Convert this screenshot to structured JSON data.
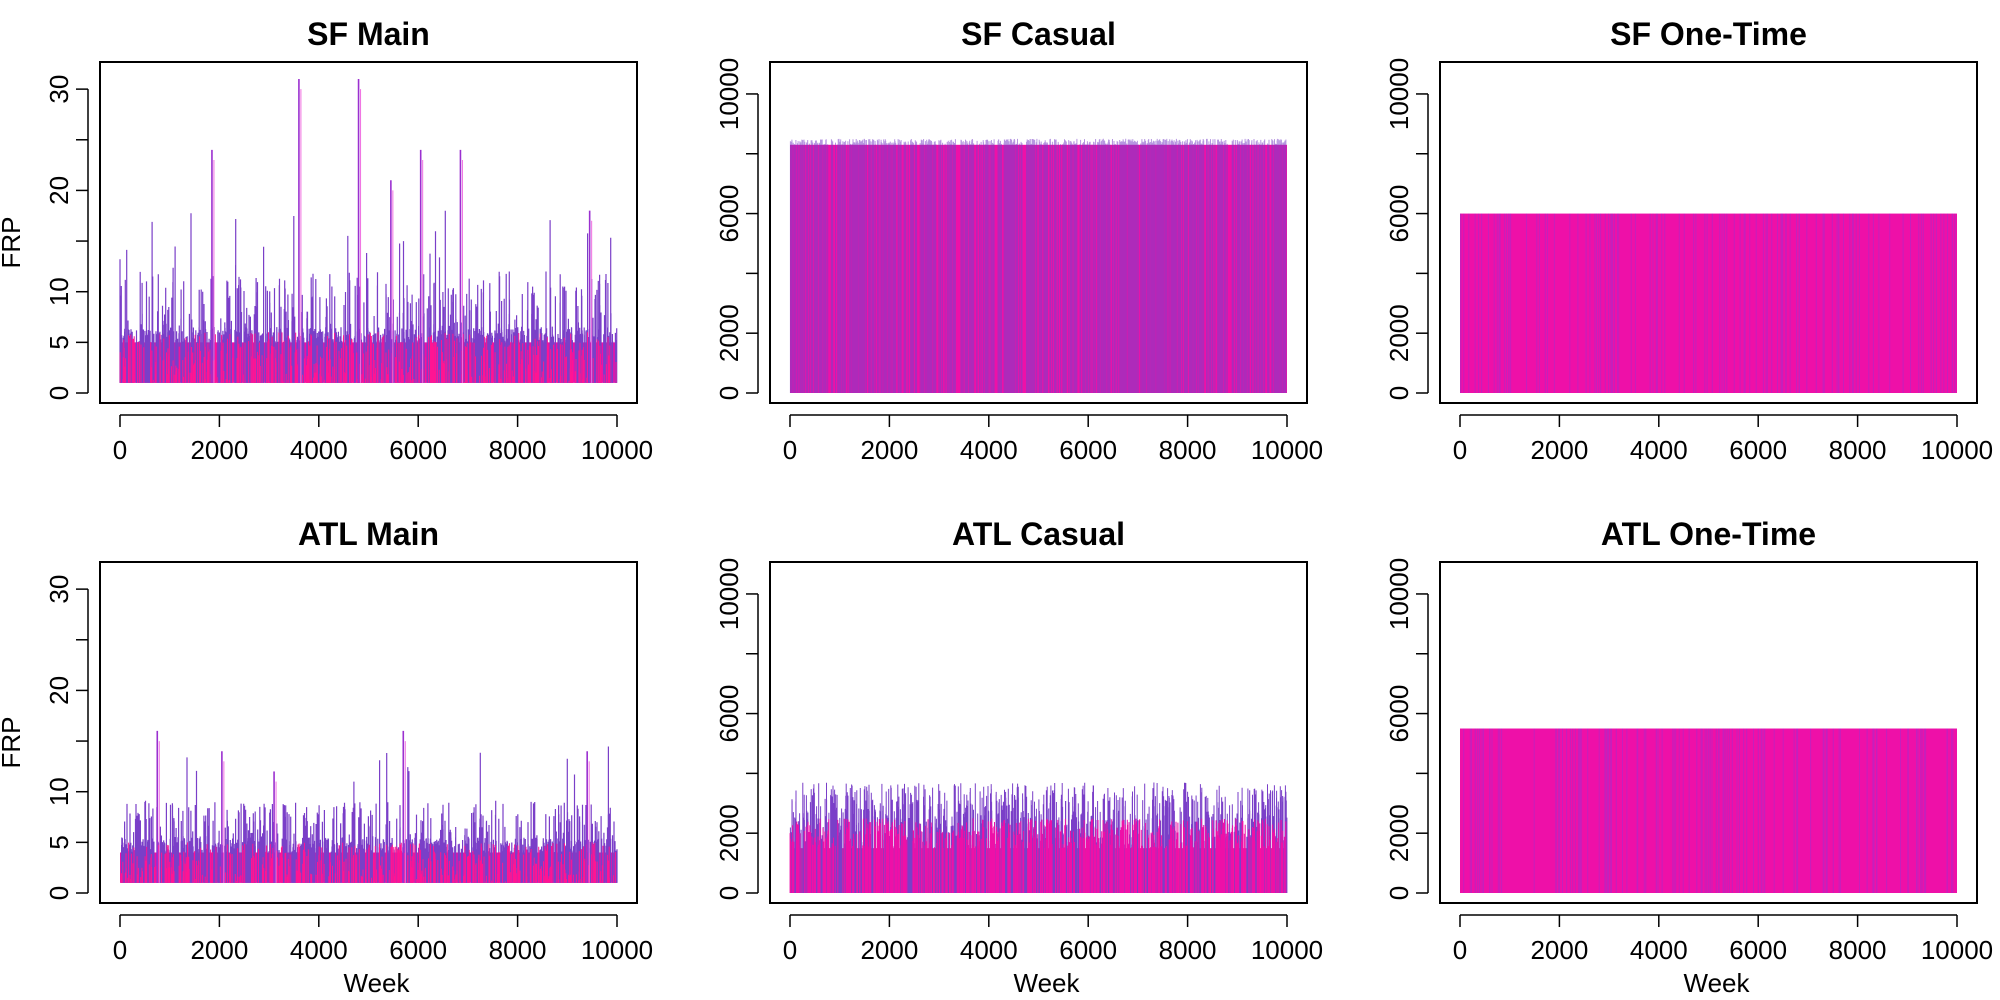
{
  "figure": {
    "colors": {
      "spike_dark": "#7a3fc8",
      "spike_mid": "#9b30d0",
      "fill_magenta": "#ee10a8",
      "fill_pink": "#ff1493",
      "light_pink": "#f070e0"
    }
  },
  "chart_data": [
    {
      "type": "area",
      "title": "SF Main",
      "xlabel": "",
      "ylabel": "FRP",
      "xlim": [
        0,
        10000
      ],
      "ylim": [
        0,
        31
      ],
      "x_ticks": [
        "0",
        "2000",
        "4000",
        "6000",
        "8000",
        "10000"
      ],
      "y_ticks": [
        "0",
        "5",
        "10",
        "20",
        "30"
      ],
      "series_summary": {
        "baseline": 1,
        "typical_range": [
          1,
          5
        ],
        "frequent_spikes_to": 10,
        "occasional_peaks": [
          [
            1850,
            24
          ],
          [
            3600,
            31
          ],
          [
            4800,
            31
          ],
          [
            5450,
            21
          ],
          [
            6050,
            24
          ],
          [
            6850,
            24
          ],
          [
            9450,
            18
          ]
        ]
      }
    },
    {
      "type": "area",
      "title": "SF Casual",
      "xlabel": "",
      "ylabel": "",
      "xlim": [
        0,
        10000
      ],
      "ylim": [
        0,
        10500
      ],
      "x_ticks": [
        "0",
        "2000",
        "4000",
        "6000",
        "8000",
        "10000"
      ],
      "y_ticks": [
        "0",
        "2000",
        "6000",
        "10000"
      ],
      "series_summary": {
        "baseline": 0,
        "band_top": 8300,
        "max": 8500
      }
    },
    {
      "type": "area",
      "title": "SF One-Time",
      "xlabel": "",
      "ylabel": "",
      "xlim": [
        0,
        10000
      ],
      "ylim": [
        0,
        10500
      ],
      "x_ticks": [
        "0",
        "2000",
        "4000",
        "6000",
        "8000",
        "10000"
      ],
      "y_ticks": [
        "0",
        "2000",
        "6000",
        "10000"
      ],
      "series_summary": {
        "baseline": 0,
        "band_top": 6000,
        "max": 6000
      }
    },
    {
      "type": "area",
      "title": "ATL Main",
      "xlabel": "Week",
      "ylabel": "FRP",
      "xlim": [
        0,
        10000
      ],
      "ylim": [
        0,
        31
      ],
      "x_ticks": [
        "0",
        "2000",
        "4000",
        "6000",
        "8000",
        "10000"
      ],
      "y_ticks": [
        "0",
        "5",
        "10",
        "20",
        "30"
      ],
      "series_summary": {
        "baseline": 1,
        "typical_range": [
          1,
          4
        ],
        "frequent_spikes_to": 7,
        "occasional_peaks": [
          [
            750,
            16
          ],
          [
            2050,
            14
          ],
          [
            3100,
            12
          ],
          [
            5700,
            16
          ],
          [
            9400,
            14
          ]
        ]
      }
    },
    {
      "type": "area",
      "title": "ATL Casual",
      "xlabel": "Week",
      "ylabel": "",
      "xlim": [
        0,
        10000
      ],
      "ylim": [
        0,
        10500
      ],
      "x_ticks": [
        "0",
        "2000",
        "4000",
        "6000",
        "8000",
        "10000"
      ],
      "y_ticks": [
        "0",
        "2000",
        "6000",
        "10000"
      ],
      "series_summary": {
        "baseline": 0,
        "band_bottom_fill": 1500,
        "band_top_range": [
          2200,
          3700
        ]
      }
    },
    {
      "type": "area",
      "title": "ATL One-Time",
      "xlabel": "Week",
      "ylabel": "",
      "xlim": [
        0,
        10000
      ],
      "ylim": [
        0,
        10500
      ],
      "x_ticks": [
        "0",
        "2000",
        "4000",
        "6000",
        "8000",
        "10000"
      ],
      "y_ticks": [
        "0",
        "2000",
        "6000",
        "10000"
      ],
      "series_summary": {
        "baseline": 0,
        "band_top": 5500,
        "max": 5500
      }
    }
  ]
}
